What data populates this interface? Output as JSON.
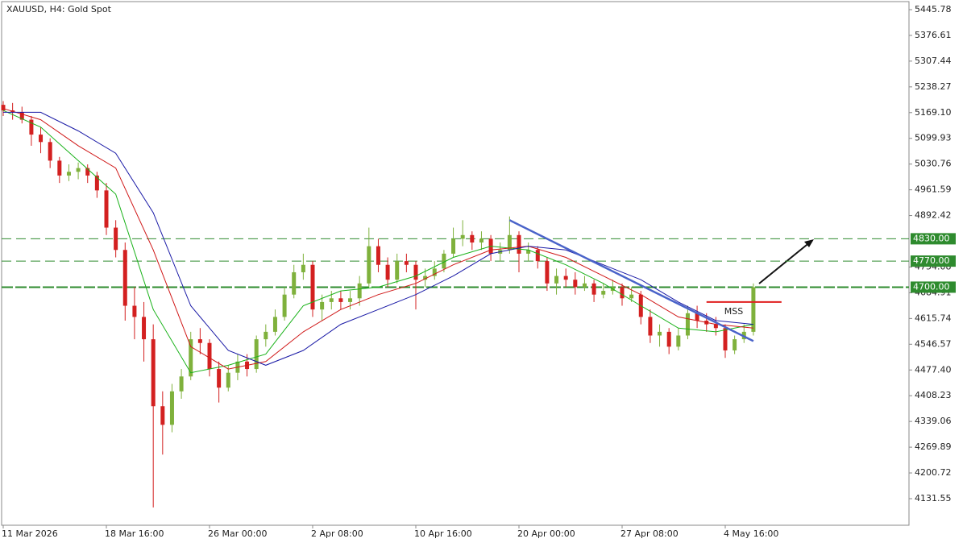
{
  "chart_data": {
    "type": "candlestick",
    "title": "XAUUSD, H4:  Gold Spot",
    "ylim": [
      4060.1,
      5467.4
    ],
    "yticks": [
      5445.78,
      5376.61,
      5307.44,
      5238.27,
      {
        "value": 5169.1,
        "label": "5169.10"
      },
      5099.93,
      5030.76,
      4961.59,
      4892.42,
      4754.08,
      4684.91,
      4615.74,
      4546.57,
      {
        "value": 4477.4,
        "label": "4477.40"
      },
      4408.23,
      4339.06,
      4269.89,
      4200.72,
      4131.55
    ],
    "xlim": [
      0,
      97
    ],
    "xticks": [
      {
        "value": 0,
        "label": "11 Mar 2026"
      },
      {
        "value": 11,
        "label": "18 Mar 16:00"
      },
      {
        "value": 22,
        "label": "26 Mar 00:00"
      },
      {
        "value": 33,
        "label": "2 Apr 08:00"
      },
      {
        "value": 44,
        "label": "10 Apr 16:00"
      },
      {
        "value": 55,
        "label": "20 Apr 00:00"
      },
      {
        "value": 66,
        "label": "27 Apr 08:00"
      },
      {
        "value": 77,
        "label": "4 May 16:00"
      }
    ],
    "up_color": "#7fb13c",
    "down_color": "#d32020",
    "ohlc": [
      [
        5190,
        5200,
        5160,
        5175
      ],
      [
        5175,
        5195,
        5150,
        5170
      ],
      [
        5170,
        5185,
        5140,
        5150
      ],
      [
        5150,
        5160,
        5080,
        5110
      ],
      [
        5110,
        5130,
        5060,
        5090
      ],
      [
        5090,
        5100,
        5020,
        5040
      ],
      [
        5040,
        5050,
        4980,
        5000
      ],
      [
        5000,
        5030,
        4985,
        5010
      ],
      [
        5010,
        5035,
        4990,
        5020
      ],
      [
        5020,
        5030,
        4980,
        5000
      ],
      [
        5000,
        5010,
        4940,
        4960
      ],
      [
        4960,
        4980,
        4840,
        4860
      ],
      [
        4860,
        4880,
        4780,
        4800
      ],
      [
        4800,
        4820,
        4610,
        4650
      ],
      [
        4650,
        4700,
        4560,
        4620
      ],
      [
        4620,
        4660,
        4500,
        4560
      ],
      [
        4560,
        4600,
        4108,
        4380
      ],
      [
        4380,
        4420,
        4250,
        4330
      ],
      [
        4330,
        4440,
        4310,
        4420
      ],
      [
        4420,
        4480,
        4400,
        4460
      ],
      [
        4460,
        4580,
        4450,
        4560
      ],
      [
        4560,
        4590,
        4520,
        4550
      ],
      [
        4550,
        4560,
        4460,
        4480
      ],
      [
        4480,
        4500,
        4390,
        4430
      ],
      [
        4430,
        4490,
        4420,
        4470
      ],
      [
        4470,
        4520,
        4450,
        4500
      ],
      [
        4500,
        4520,
        4460,
        4480
      ],
      [
        4480,
        4570,
        4470,
        4560
      ],
      [
        4560,
        4600,
        4540,
        4580
      ],
      [
        4580,
        4640,
        4570,
        4620
      ],
      [
        4620,
        4700,
        4610,
        4680
      ],
      [
        4680,
        4760,
        4670,
        4740
      ],
      [
        4740,
        4790,
        4720,
        4760
      ],
      [
        4760,
        4770,
        4620,
        4640
      ],
      [
        4640,
        4680,
        4610,
        4660
      ],
      [
        4660,
        4690,
        4640,
        4670
      ],
      [
        4670,
        4690,
        4640,
        4660
      ],
      [
        4660,
        4690,
        4640,
        4670
      ],
      [
        4670,
        4730,
        4650,
        4710
      ],
      [
        4710,
        4860,
        4700,
        4810
      ],
      [
        4810,
        4830,
        4740,
        4760
      ],
      [
        4760,
        4780,
        4700,
        4720
      ],
      [
        4720,
        4790,
        4710,
        4770
      ],
      [
        4770,
        4790,
        4740,
        4760
      ],
      [
        4760,
        4770,
        4640,
        4720
      ],
      [
        4720,
        4750,
        4700,
        4730
      ],
      [
        4730,
        4770,
        4720,
        4750
      ],
      [
        4750,
        4800,
        4740,
        4790
      ],
      [
        4790,
        4860,
        4780,
        4830
      ],
      [
        4830,
        4880,
        4810,
        4840
      ],
      [
        4840,
        4850,
        4800,
        4820
      ],
      [
        4820,
        4850,
        4800,
        4830
      ],
      [
        4830,
        4840,
        4770,
        4790
      ],
      [
        4790,
        4820,
        4770,
        4800
      ],
      [
        4800,
        4890,
        4790,
        4840
      ],
      [
        4840,
        4850,
        4740,
        4790
      ],
      [
        4790,
        4820,
        4770,
        4800
      ],
      [
        4800,
        4810,
        4750,
        4770
      ],
      [
        4770,
        4780,
        4690,
        4710
      ],
      [
        4710,
        4750,
        4680,
        4730
      ],
      [
        4730,
        4750,
        4700,
        4720
      ],
      [
        4720,
        4740,
        4680,
        4700
      ],
      [
        4700,
        4730,
        4690,
        4710
      ],
      [
        4710,
        4720,
        4660,
        4680
      ],
      [
        4680,
        4710,
        4670,
        4690
      ],
      [
        4690,
        4720,
        4680,
        4700
      ],
      [
        4700,
        4710,
        4650,
        4670
      ],
      [
        4670,
        4700,
        4660,
        4680
      ],
      [
        4680,
        4690,
        4600,
        4620
      ],
      [
        4620,
        4640,
        4550,
        4570
      ],
      [
        4570,
        4600,
        4540,
        4580
      ],
      [
        4580,
        4590,
        4520,
        4540
      ],
      [
        4540,
        4590,
        4530,
        4570
      ],
      [
        4570,
        4650,
        4560,
        4630
      ],
      [
        4630,
        4650,
        4590,
        4610
      ],
      [
        4610,
        4630,
        4580,
        4600
      ],
      [
        4600,
        4620,
        4570,
        4590
      ],
      [
        4590,
        4600,
        4510,
        4530
      ],
      [
        4530,
        4570,
        4520,
        4560
      ],
      [
        4560,
        4600,
        4550,
        4580
      ],
      [
        4580,
        4710,
        4570,
        4700
      ]
    ],
    "moving_averages": [
      {
        "color": "#19b219",
        "x": [
          0,
          4,
          8,
          12,
          16,
          20,
          24,
          28,
          32,
          36,
          40,
          44,
          48,
          52,
          56,
          60,
          64,
          68,
          72,
          76,
          80
        ],
        "values": [
          5175,
          5130,
          5040,
          4950,
          4640,
          4470,
          4490,
          4520,
          4650,
          4690,
          4700,
          4730,
          4780,
          4810,
          4800,
          4760,
          4710,
          4650,
          4590,
          4580,
          4600
        ]
      },
      {
        "color": "#d01818",
        "x": [
          0,
          4,
          8,
          12,
          16,
          20,
          24,
          28,
          32,
          36,
          40,
          44,
          48,
          52,
          56,
          60,
          64,
          68,
          72,
          76,
          80
        ],
        "values": [
          5180,
          5150,
          5080,
          5020,
          4800,
          4540,
          4480,
          4500,
          4580,
          4640,
          4680,
          4710,
          4760,
          4800,
          4810,
          4780,
          4730,
          4680,
          4620,
          4600,
          4590
        ]
      },
      {
        "color": "#1a1aa6",
        "x": [
          0,
          4,
          8,
          12,
          16,
          20,
          24,
          28,
          32,
          36,
          40,
          44,
          48,
          52,
          56,
          60,
          64,
          68,
          72,
          76,
          80
        ],
        "values": [
          5170,
          5170,
          5120,
          5060,
          4900,
          4650,
          4530,
          4490,
          4530,
          4600,
          4640,
          4680,
          4730,
          4790,
          4810,
          4800,
          4760,
          4720,
          4660,
          4610,
          4600
        ]
      }
    ],
    "levels": [
      {
        "value": 4830,
        "label": "4830.00"
      },
      {
        "value": 4770,
        "label": "4770.00"
      },
      {
        "value": 4700,
        "label": "4700.00"
      }
    ],
    "level_color": "#2e8b2e",
    "trendline": {
      "color": "#4a63c9",
      "x": [
        54,
        80
      ],
      "values": [
        4880,
        4555
      ]
    },
    "mss": {
      "label": "MSS",
      "color": "#e02020",
      "x": [
        75,
        83
      ],
      "value": 4660
    }
  }
}
